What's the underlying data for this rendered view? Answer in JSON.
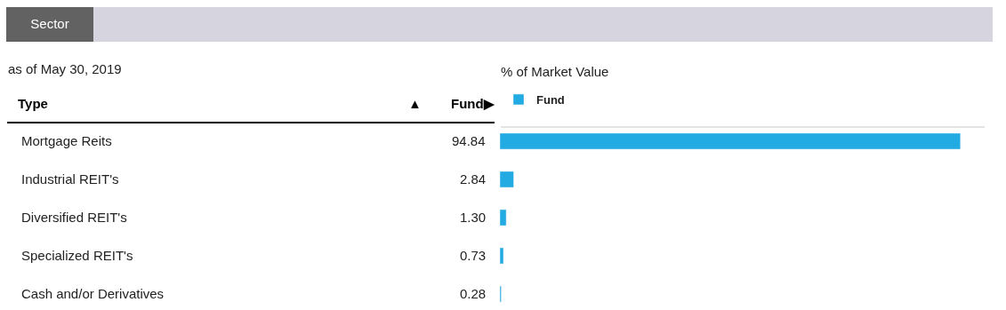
{
  "chart_data": {
    "type": "bar",
    "orientation": "horizontal",
    "title": "Sector",
    "subtitle": "as of May 30, 2019",
    "xlabel": "% of Market Value",
    "categories": [
      "Mortgage Reits",
      "Industrial REIT's",
      "Diversified REIT's",
      "Specialized REIT's",
      "Cash and/or Derivatives"
    ],
    "series": [
      {
        "name": "Fund",
        "color": "#22abe2",
        "values": [
          94.84,
          2.84,
          1.3,
          0.73,
          0.28
        ],
        "value_labels": [
          "94.84",
          "2.84",
          "1.30",
          "0.73",
          "0.28"
        ]
      }
    ],
    "annotations": [
      "Type",
      "▲",
      "Fund▶"
    ],
    "legend": "top left"
  }
}
